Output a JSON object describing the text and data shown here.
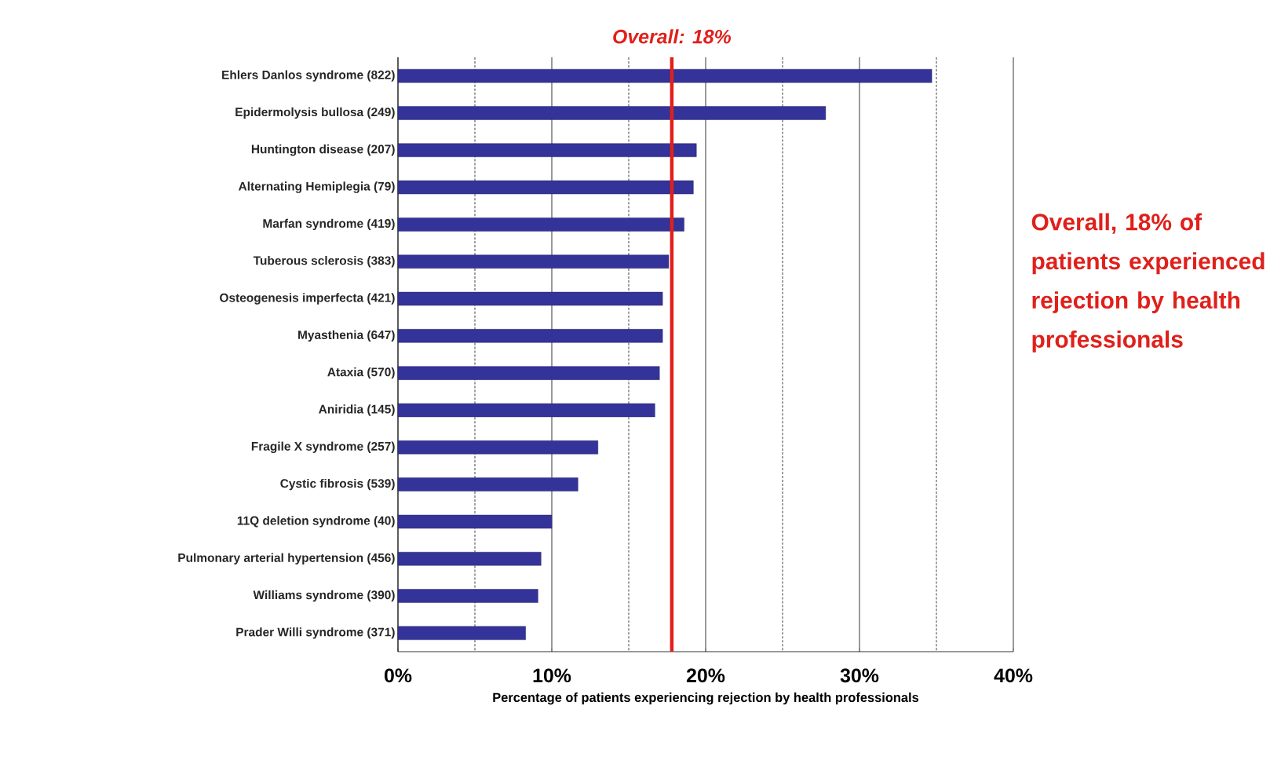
{
  "chart_data": {
    "type": "bar",
    "orientation": "horizontal",
    "categories": [
      "Ehlers Danlos syndrome (822)",
      "Epidermolysis bullosa (249)",
      "Huntington disease (207)",
      "Alternating Hemiplegia (79)",
      "Marfan syndrome (419)",
      "Tuberous sclerosis (383)",
      "Osteogenesis imperfecta (421)",
      "Myasthenia (647)",
      "Ataxia (570)",
      "Aniridia (145)",
      "Fragile X syndrome (257)",
      "Cystic fibrosis (539)",
      "11Q deletion syndrome (40)",
      "Pulmonary arterial hypertension (456)",
      "Williams syndrome (390)",
      "Prader Willi syndrome (371)"
    ],
    "values": [
      34.7,
      27.8,
      19.4,
      19.2,
      18.6,
      17.6,
      17.2,
      17.2,
      17.0,
      16.7,
      13.0,
      11.7,
      10.0,
      9.3,
      9.1,
      8.3
    ],
    "color": "#333399",
    "xlim": [
      0,
      40
    ],
    "xticks": [
      {
        "value": 0,
        "label": "0%"
      },
      {
        "value": 5,
        "label": null
      },
      {
        "value": 10,
        "label": "10%"
      },
      {
        "value": 15,
        "label": null
      },
      {
        "value": 20,
        "label": "20%"
      },
      {
        "value": 25,
        "label": null
      },
      {
        "value": 30,
        "label": "30%"
      },
      {
        "value": 35,
        "label": null
      },
      {
        "value": 40,
        "label": "40%"
      }
    ],
    "grid": "x",
    "xlabel": "Percentage of patients experiencing rejection by health professionals",
    "ref_lines": [
      {
        "axis": "x",
        "value": 17.8,
        "label": "Overall: 18%",
        "color": "#e0201b"
      }
    ],
    "annotations": [
      "Overall, 18% of patients experienced rejection by health professionals"
    ]
  }
}
